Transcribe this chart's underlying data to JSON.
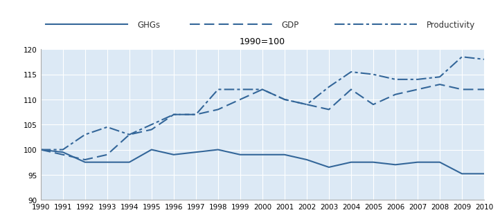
{
  "years": [
    1990,
    1991,
    1992,
    1993,
    1994,
    1995,
    1996,
    1997,
    1998,
    1999,
    2000,
    2001,
    2002,
    2003,
    2004,
    2005,
    2006,
    2007,
    2008,
    2009,
    2010
  ],
  "GHGs": [
    100,
    99.5,
    97.5,
    97.5,
    97.5,
    100,
    99,
    99.5,
    100,
    99,
    99,
    99,
    98,
    96.5,
    97.5,
    97.5,
    97,
    97.5,
    97.5,
    95.2,
    95.2
  ],
  "GDP": [
    100,
    99,
    98,
    99,
    103,
    104,
    107,
    107,
    108,
    110,
    112,
    110,
    109,
    108,
    112,
    109,
    111,
    112,
    113,
    112,
    112
  ],
  "Productivity": [
    100,
    100,
    103,
    104.5,
    103,
    105,
    107,
    107,
    112,
    112,
    112,
    110,
    109,
    112.5,
    115.5,
    115,
    114,
    114,
    114.5,
    118.5,
    118
  ],
  "title": "1990=100",
  "ylim": [
    90,
    120
  ],
  "yticks": [
    90,
    95,
    100,
    105,
    110,
    115,
    120
  ],
  "legend_labels": [
    "GHGs",
    "GDP",
    "Productivity"
  ],
  "line_color": "#336699",
  "plot_bg": "#dce9f5",
  "legend_bg": "#e8e8e8",
  "outer_bg": "#ffffff",
  "grid_color": "#ffffff",
  "spine_color": "#aaaaaa",
  "tick_fontsize": 7.5,
  "title_fontsize": 9,
  "legend_fontsize": 8.5,
  "linewidth": 1.5
}
